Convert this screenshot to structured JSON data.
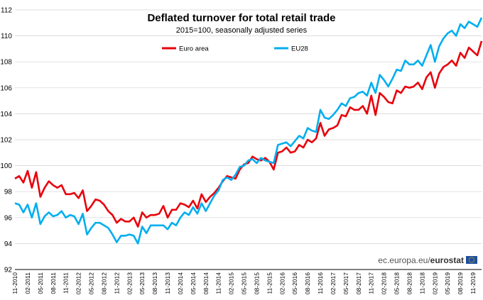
{
  "chart_data": {
    "type": "line",
    "title": "Deflated turnover for total retail trade",
    "subtitle": "2015=100, seasonally adjusted series",
    "ylim": [
      92,
      112
    ],
    "yticks": [
      92,
      94,
      96,
      98,
      100,
      102,
      104,
      106,
      108,
      110,
      112
    ],
    "x_tick_labels": [
      "11-2010",
      "02-2011",
      "05-2011",
      "08-2011",
      "11-2011",
      "02-2012",
      "05-2012",
      "08-2012",
      "11-2012",
      "02-2013",
      "05-2013",
      "08-2013",
      "11-2013",
      "02-2014",
      "05-2014",
      "08-2014",
      "11-2014",
      "02-2015",
      "05-2015",
      "08-2015",
      "11-2015",
      "02-2016",
      "05-2016",
      "08-2016",
      "11-2016",
      "02-2017",
      "05-2017",
      "08-2017",
      "11-2017",
      "02-2018",
      "05-2018",
      "08-2018",
      "11-2018",
      "02-2019",
      "05-2019",
      "08-2019",
      "11-2019"
    ],
    "grid": "horizontal",
    "legend_position": "top",
    "series": [
      {
        "name": "Euro area",
        "color": "#e8000b",
        "values": [
          99.0,
          99.2,
          98.7,
          99.6,
          98.3,
          99.5,
          97.6,
          98.3,
          98.8,
          98.5,
          98.3,
          98.5,
          97.8,
          97.8,
          97.9,
          97.5,
          98.1,
          96.5,
          96.9,
          97.4,
          97.3,
          97.0,
          96.5,
          96.2,
          95.6,
          95.9,
          95.7,
          95.7,
          96.0,
          95.3,
          96.4,
          96.0,
          96.2,
          96.2,
          96.3,
          96.9,
          96.0,
          96.6,
          96.6,
          97.1,
          97.0,
          96.8,
          97.3,
          96.7,
          97.8,
          97.2,
          97.6,
          97.9,
          98.3,
          98.8,
          99.2,
          99.1,
          99.0,
          99.7,
          100.1,
          100.2,
          100.7,
          100.5,
          100.4,
          100.6,
          100.3,
          99.7,
          101.0,
          101.1,
          101.4,
          101.0,
          101.1,
          101.6,
          101.4,
          102.0,
          101.8,
          102.1,
          103.3,
          102.3,
          102.8,
          102.9,
          103.1,
          103.9,
          103.8,
          104.5,
          104.3,
          104.3,
          104.6,
          104.0,
          105.4,
          103.9,
          105.6,
          105.3,
          104.9,
          104.8,
          105.8,
          105.6,
          106.1,
          106.0,
          106.1,
          106.4,
          105.9,
          106.8,
          107.2,
          106.0,
          107.1,
          107.6,
          107.8,
          108.1,
          107.7,
          108.7,
          108.3,
          109.1,
          108.8,
          108.5,
          109.6
        ]
      },
      {
        "name": "EU28",
        "color": "#00aeef",
        "values": [
          97.1,
          97.0,
          96.4,
          97.0,
          96.0,
          97.1,
          95.5,
          96.1,
          96.4,
          96.1,
          96.2,
          96.5,
          96.0,
          96.2,
          96.1,
          95.5,
          96.3,
          94.7,
          95.2,
          95.6,
          95.6,
          95.4,
          95.2,
          94.7,
          94.1,
          94.6,
          94.6,
          94.7,
          94.6,
          94.0,
          95.3,
          94.8,
          95.4,
          95.4,
          95.4,
          95.4,
          95.1,
          95.6,
          95.4,
          96.0,
          96.4,
          96.2,
          96.8,
          96.3,
          97.1,
          96.5,
          97.1,
          97.7,
          98.1,
          98.9,
          99.1,
          98.9,
          99.3,
          99.9,
          100.0,
          100.4,
          100.5,
          100.2,
          100.6,
          100.4,
          100.3,
          100.2,
          101.6,
          101.7,
          101.8,
          101.5,
          101.9,
          102.3,
          102.1,
          102.9,
          102.7,
          102.6,
          104.3,
          103.7,
          103.6,
          103.9,
          104.3,
          104.8,
          104.6,
          105.2,
          105.3,
          105.6,
          105.7,
          105.4,
          106.4,
          105.6,
          107.0,
          106.6,
          106.1,
          106.7,
          107.4,
          107.3,
          108.1,
          107.8,
          107.8,
          108.1,
          107.7,
          108.5,
          109.3,
          108.0,
          109.2,
          109.8,
          110.2,
          110.4,
          110.0,
          110.9,
          110.6,
          111.1,
          110.9,
          110.7,
          111.4
        ]
      }
    ]
  },
  "source": {
    "prefix": "ec.europa.eu/",
    "brand": "eurostat"
  },
  "colors": {
    "grid": "#d0d0d0",
    "axis": "#000000",
    "flag_blue": "#1f4f9e",
    "flag_star": "#ffd600"
  }
}
